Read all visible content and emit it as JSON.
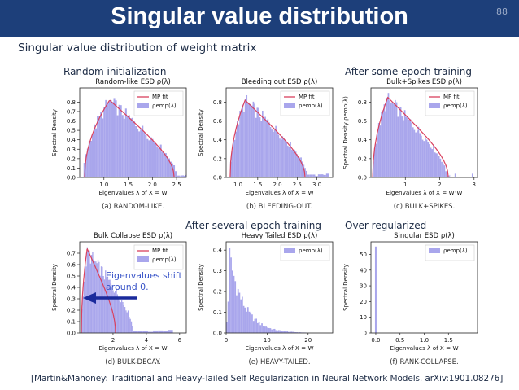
{
  "slide": {
    "title": "Singular value distribution",
    "page_number": "88",
    "subtitle": "Singular value distribution of weight matrix",
    "citation": "[Martin&Mahoney: Traditional and Heavy-Tailed Self Regularization in Neural Network Models. arXiv:1901.08276]"
  },
  "annotations": {
    "random_init": "Random initialization",
    "some_epoch": "After some epoch training",
    "several_epoch": "After several epoch training",
    "over_regularized": "Over regularized",
    "shift_line1": "Eigenvalues shift",
    "shift_line2": "around 0."
  },
  "colors": {
    "header_bg": "#1d3f7a",
    "hist_fill": "#a9a6ec",
    "mp_line": "#d9405e",
    "arrow": "#1a2a9c",
    "note_blue": "#3a55c8"
  },
  "chart_data": [
    {
      "id": "a",
      "type": "bar",
      "title": "Random-like ESD ρ(λ)",
      "xlabel": "Eigenvalues λ of X = W",
      "ylabel": "Spectral Density",
      "caption": "(a) RANDOM-LIKE.",
      "legend": [
        "MP fit",
        "ρemp(λ)"
      ],
      "xlim": [
        0.5,
        2.7
      ],
      "ylim": [
        0,
        0.95
      ],
      "xticks": [
        "1.0",
        "1.5",
        "2.0",
        "2.5"
      ],
      "xtick_values": [
        1.0,
        1.5,
        2.0,
        2.5
      ],
      "yticks": [
        "0.0",
        "0.1",
        "0.2",
        "0.3",
        "0.4",
        "0.5",
        "0.6",
        "0.7",
        "0.8"
      ],
      "ytick_values": [
        0,
        0.1,
        0.2,
        0.3,
        0.4,
        0.5,
        0.6,
        0.7,
        0.8
      ],
      "mp_fit": {
        "lmin": 0.6,
        "lmax": 2.45,
        "peak": 0.82,
        "skew": 0.28
      },
      "hist": {
        "lmin": 0.58,
        "lmax": 2.5,
        "peak": 0.8,
        "skew": 0.28,
        "bins": 56,
        "tail": [
          2.5,
          2.7,
          0.02
        ]
      }
    },
    {
      "id": "b",
      "type": "bar",
      "title": "Bleeding out ESD ρ(λ)",
      "xlabel": "Eigenvalues λ of X = W",
      "ylabel": "Spectral Density",
      "caption": "(b) BLEEDING-OUT.",
      "legend": [
        "MP fit",
        "ρemp(λ)"
      ],
      "xlim": [
        0.7,
        3.4
      ],
      "ylim": [
        0,
        0.95
      ],
      "xticks": [
        "1.0",
        "1.5",
        "2.0",
        "2.5",
        "3.0"
      ],
      "xtick_values": [
        1.0,
        1.5,
        2.0,
        2.5,
        3.0
      ],
      "yticks": [
        "0.0",
        "0.2",
        "0.4",
        "0.6",
        "0.8"
      ],
      "ytick_values": [
        0,
        0.2,
        0.4,
        0.6,
        0.8
      ],
      "mp_fit": {
        "lmin": 0.8,
        "lmax": 2.7,
        "peak": 0.82,
        "skew": 0.2
      },
      "hist": {
        "lmin": 0.8,
        "lmax": 2.75,
        "peak": 0.8,
        "skew": 0.2,
        "bins": 58,
        "tail": [
          2.75,
          3.3,
          0.03
        ]
      }
    },
    {
      "id": "c",
      "type": "bar",
      "title": "Bulk+Spikes ESD ρ(λ)",
      "xlabel": "Eigenvalues λ of X = WᵀW",
      "ylabel": "Spectral Density ρemp(λ)",
      "caption": "(c) BULK+SPIKES.",
      "legend": [
        "MP fit",
        "ρemp(λ)"
      ],
      "xlim": [
        0,
        3.1
      ],
      "ylim": [
        0,
        0.95
      ],
      "xticks": [
        "1",
        "2",
        "3"
      ],
      "xtick_values": [
        1,
        2,
        3
      ],
      "yticks": [
        "0.0",
        "0.2",
        "0.4",
        "0.6",
        "0.8"
      ],
      "ytick_values": [
        0,
        0.2,
        0.4,
        0.6,
        0.8
      ],
      "mp_fit": {
        "lmin": 0.05,
        "lmax": 2.25,
        "peak": 0.85,
        "skew": 0.2
      },
      "hist": {
        "lmin": 0.05,
        "lmax": 2.2,
        "peak": 0.82,
        "skew": 0.2,
        "bins": 54,
        "tail": [
          2.2,
          2.3,
          0.02
        ]
      },
      "spikes": [
        2.45,
        2.95
      ]
    },
    {
      "id": "d",
      "type": "bar",
      "title": "Bulk Collapse ESD ρ(λ)",
      "xlabel": "Eigenvalues λ of X = W",
      "ylabel": "Spectral Density",
      "caption": "(d) BULK-DECAY.",
      "legend": [
        "MP fit",
        "ρemp(λ)"
      ],
      "xlim": [
        0,
        6.4
      ],
      "ylim": [
        0,
        0.8
      ],
      "xticks": [
        "2",
        "4",
        "6"
      ],
      "xtick_values": [
        2,
        4,
        6
      ],
      "yticks": [
        "0.0",
        "0.1",
        "0.2",
        "0.3",
        "0.4",
        "0.5",
        "0.6",
        "0.7"
      ],
      "ytick_values": [
        0,
        0.1,
        0.2,
        0.3,
        0.4,
        0.5,
        0.6,
        0.7
      ],
      "mp_fit": {
        "lmin": 0.1,
        "lmax": 2.15,
        "peak": 0.74,
        "skew": 0.17
      },
      "hist": {
        "lmin": 0.1,
        "lmax": 3.2,
        "peak": 0.7,
        "skew": 0.12,
        "bins": 48,
        "tail": [
          3.2,
          5.6,
          0.02
        ]
      }
    },
    {
      "id": "e",
      "type": "bar",
      "title": "Heavy Tailed ESD ρ(λ)",
      "xlabel": "Eigenvalues λ of X = W",
      "ylabel": "Spectral Density",
      "caption": "(e) HEAVY-TAILED.",
      "legend": [
        "ρemp(λ)"
      ],
      "xlim": [
        0,
        26
      ],
      "ylim": [
        0,
        0.44
      ],
      "xticks": [
        "0",
        "10",
        "20"
      ],
      "xtick_values": [
        0,
        10,
        20
      ],
      "yticks": [
        "0.0",
        "0.1",
        "0.2",
        "0.3",
        "0.4"
      ],
      "ytick_values": [
        0,
        0.1,
        0.2,
        0.3,
        0.4
      ],
      "hist": {
        "heavy_tail": true,
        "peak_at": 0.8,
        "peak": 0.37,
        "decay": 0.28,
        "bins": 70,
        "xmax": 24
      }
    },
    {
      "id": "f",
      "type": "bar",
      "title": "Singular ESD ρ(λ)",
      "xlabel": "Eigenvalues λ of X = W",
      "ylabel": "Spectral Density",
      "caption": "(f) RANK-COLLAPSE.",
      "legend": [
        "ρemp(λ)"
      ],
      "xlim": [
        -0.1,
        2.1
      ],
      "ylim": [
        0,
        58
      ],
      "xticks": [
        "0.0",
        "0.5",
        "1.0",
        "1.5"
      ],
      "xtick_values": [
        0,
        0.5,
        1.0,
        1.5
      ],
      "yticks": [
        "0",
        "10",
        "20",
        "30",
        "40",
        "50"
      ],
      "ytick_values": [
        0,
        10,
        20,
        30,
        40,
        50
      ],
      "hist": {
        "spike_at": 0.0,
        "spike_height": 55
      }
    }
  ]
}
